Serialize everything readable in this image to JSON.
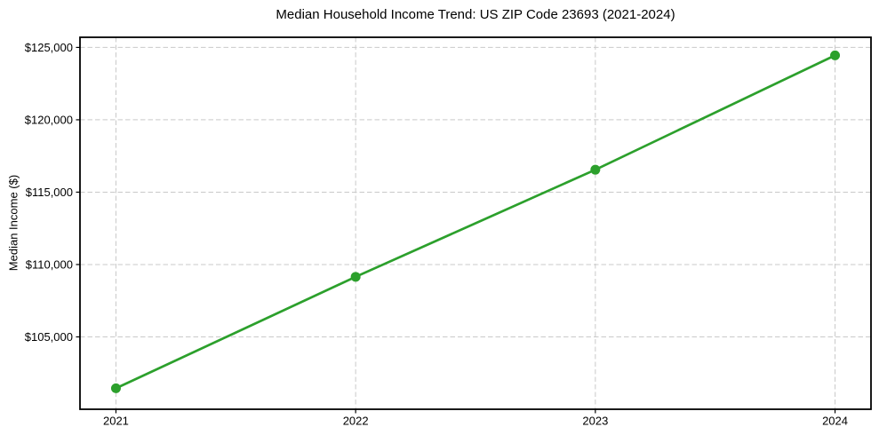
{
  "chart_data": {
    "type": "line",
    "title": "Median Household Income Trend: US ZIP Code 23693 (2021-2024)",
    "xlabel": "",
    "ylabel": "Median Income ($)",
    "categories": [
      2021,
      2022,
      2023,
      2024
    ],
    "x_tick_labels": [
      "2021",
      "2022",
      "2023",
      "2024"
    ],
    "series": [
      {
        "name": "Median Household Income",
        "values": [
          101450,
          109150,
          116550,
          124450
        ],
        "color": "#2ca02c",
        "marker": "circle"
      }
    ],
    "y_ticks": [
      105000,
      110000,
      115000,
      120000,
      125000
    ],
    "y_tick_labels": [
      "$105,000",
      "$110,000",
      "$115,000",
      "$120,000",
      "$125,000"
    ],
    "xlim": [
      2020.85,
      2024.15
    ],
    "ylim": [
      100000,
      125700
    ],
    "grid": "both-dashed",
    "legend": "none"
  },
  "colors": {
    "line": "#2ca02c",
    "grid": "#c9c9c9",
    "spine": "#000000",
    "text": "#000000",
    "background": "#ffffff"
  }
}
